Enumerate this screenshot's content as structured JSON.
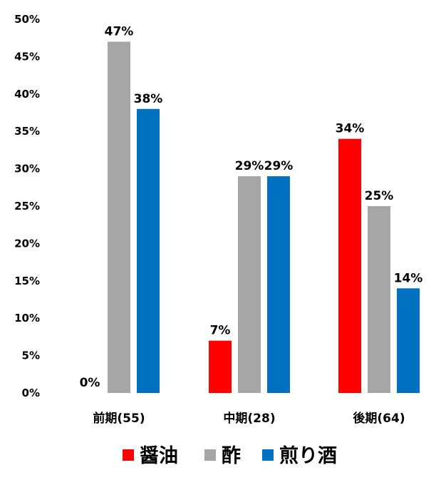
{
  "chart_data": {
    "type": "bar",
    "categories": [
      "前期(55)",
      "中期(28)",
      "後期(64)"
    ],
    "series": [
      {
        "name": "醤油",
        "color": "#ff0000",
        "values": [
          0,
          7,
          34
        ],
        "value_labels": [
          "0%",
          "7%",
          "34%"
        ]
      },
      {
        "name": "酢",
        "color": "#a6a6a6",
        "values": [
          47,
          29,
          25
        ],
        "value_labels": [
          "47%",
          "29%",
          "25%"
        ]
      },
      {
        "name": "煎り酒",
        "color": "#0070c0",
        "values": [
          38,
          29,
          14
        ],
        "value_labels": [
          "38%",
          "29%",
          "14%"
        ]
      }
    ],
    "ylim": [
      0,
      50
    ],
    "yticks": [
      0,
      5,
      10,
      15,
      20,
      25,
      30,
      35,
      40,
      45,
      50
    ],
    "ytick_labels": [
      "0%",
      "5%",
      "10%",
      "15%",
      "20%",
      "25%",
      "30%",
      "35%",
      "40%",
      "45%",
      "50%"
    ],
    "legend": "bottom",
    "grid": false
  }
}
